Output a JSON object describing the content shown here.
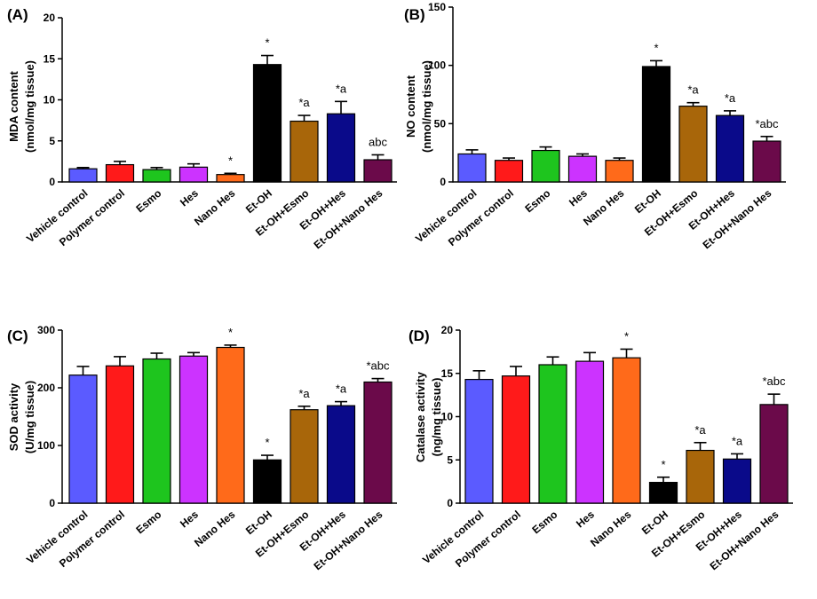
{
  "categories": [
    "Vehicle control",
    "Polymer control",
    "Esmo",
    "Hes",
    "Nano Hes",
    "Et-OH",
    "Et-OH+Esmo",
    "Et-OH+Hes",
    "Et-OH+Nano Hes"
  ],
  "colors": [
    "#5b5bff",
    "#ff1a1a",
    "#1ec51e",
    "#cc33ff",
    "#ff6a1a",
    "#000000",
    "#a8660a",
    "#0a0a8a",
    "#6b0a4a"
  ],
  "chart_data": [
    {
      "type": "bar",
      "panel": "(A)",
      "ylabel_line1": "MDA content",
      "ylabel_line2": "(nmol/mg tissue)",
      "ylim": [
        0,
        20
      ],
      "yticks": [
        "0",
        "5",
        "10",
        "15",
        "20"
      ],
      "yticks_values": [
        0,
        5,
        10,
        15,
        20
      ],
      "values": [
        1.6,
        2.1,
        1.5,
        1.8,
        0.9,
        14.3,
        7.4,
        8.3,
        2.7
      ],
      "errors": [
        0.15,
        0.4,
        0.25,
        0.4,
        0.15,
        1.1,
        0.7,
        1.5,
        0.6
      ],
      "annotations": [
        "",
        "",
        "",
        "",
        "*",
        "*",
        "*a",
        "*a",
        "abc"
      ]
    },
    {
      "type": "bar",
      "panel": "(B)",
      "ylabel_line1": "NO content",
      "ylabel_line2": "(nmol/mg tissue)",
      "ylim": [
        0,
        150
      ],
      "yticks": [
        "0",
        "50",
        "100",
        "150"
      ],
      "yticks_values": [
        0,
        50,
        100,
        150
      ],
      "values": [
        24,
        18.5,
        27,
        22,
        18.5,
        99,
        65,
        57,
        35
      ],
      "errors": [
        3.5,
        2,
        3,
        2,
        2,
        5,
        3,
        4,
        4
      ],
      "annotations": [
        "",
        "",
        "",
        "",
        "",
        "*",
        "*a",
        "*a",
        "*abc"
      ]
    },
    {
      "type": "bar",
      "panel": "(C)",
      "ylabel_line1": "SOD activity",
      "ylabel_line2": "(U/mg tissue)",
      "ylim": [
        0,
        300
      ],
      "yticks": [
        "0",
        "100",
        "200",
        "300"
      ],
      "yticks_values": [
        0,
        100,
        200,
        300
      ],
      "values": [
        222,
        238,
        250,
        255,
        270,
        75,
        162,
        169,
        210
      ],
      "errors": [
        15,
        16,
        10,
        6,
        4,
        8,
        6,
        7,
        6
      ],
      "annotations": [
        "",
        "",
        "",
        "",
        "*",
        "*",
        "*a",
        "*a",
        "*abc"
      ]
    },
    {
      "type": "bar",
      "panel": "(D)",
      "ylabel_line1": "Catalase activity",
      "ylabel_line2": "(ng/mg tissue)",
      "ylim": [
        0,
        20
      ],
      "yticks": [
        "0",
        "5",
        "10",
        "15",
        "20"
      ],
      "yticks_values": [
        0,
        5,
        10,
        15,
        20
      ],
      "values": [
        14.3,
        14.7,
        16.0,
        16.4,
        16.8,
        2.4,
        6.1,
        5.1,
        11.4
      ],
      "errors": [
        1.0,
        1.1,
        0.9,
        1.0,
        1.0,
        0.6,
        0.9,
        0.6,
        1.2
      ],
      "annotations": [
        "",
        "",
        "",
        "",
        "*",
        "*",
        "*a",
        "*a",
        "*abc"
      ]
    }
  ]
}
